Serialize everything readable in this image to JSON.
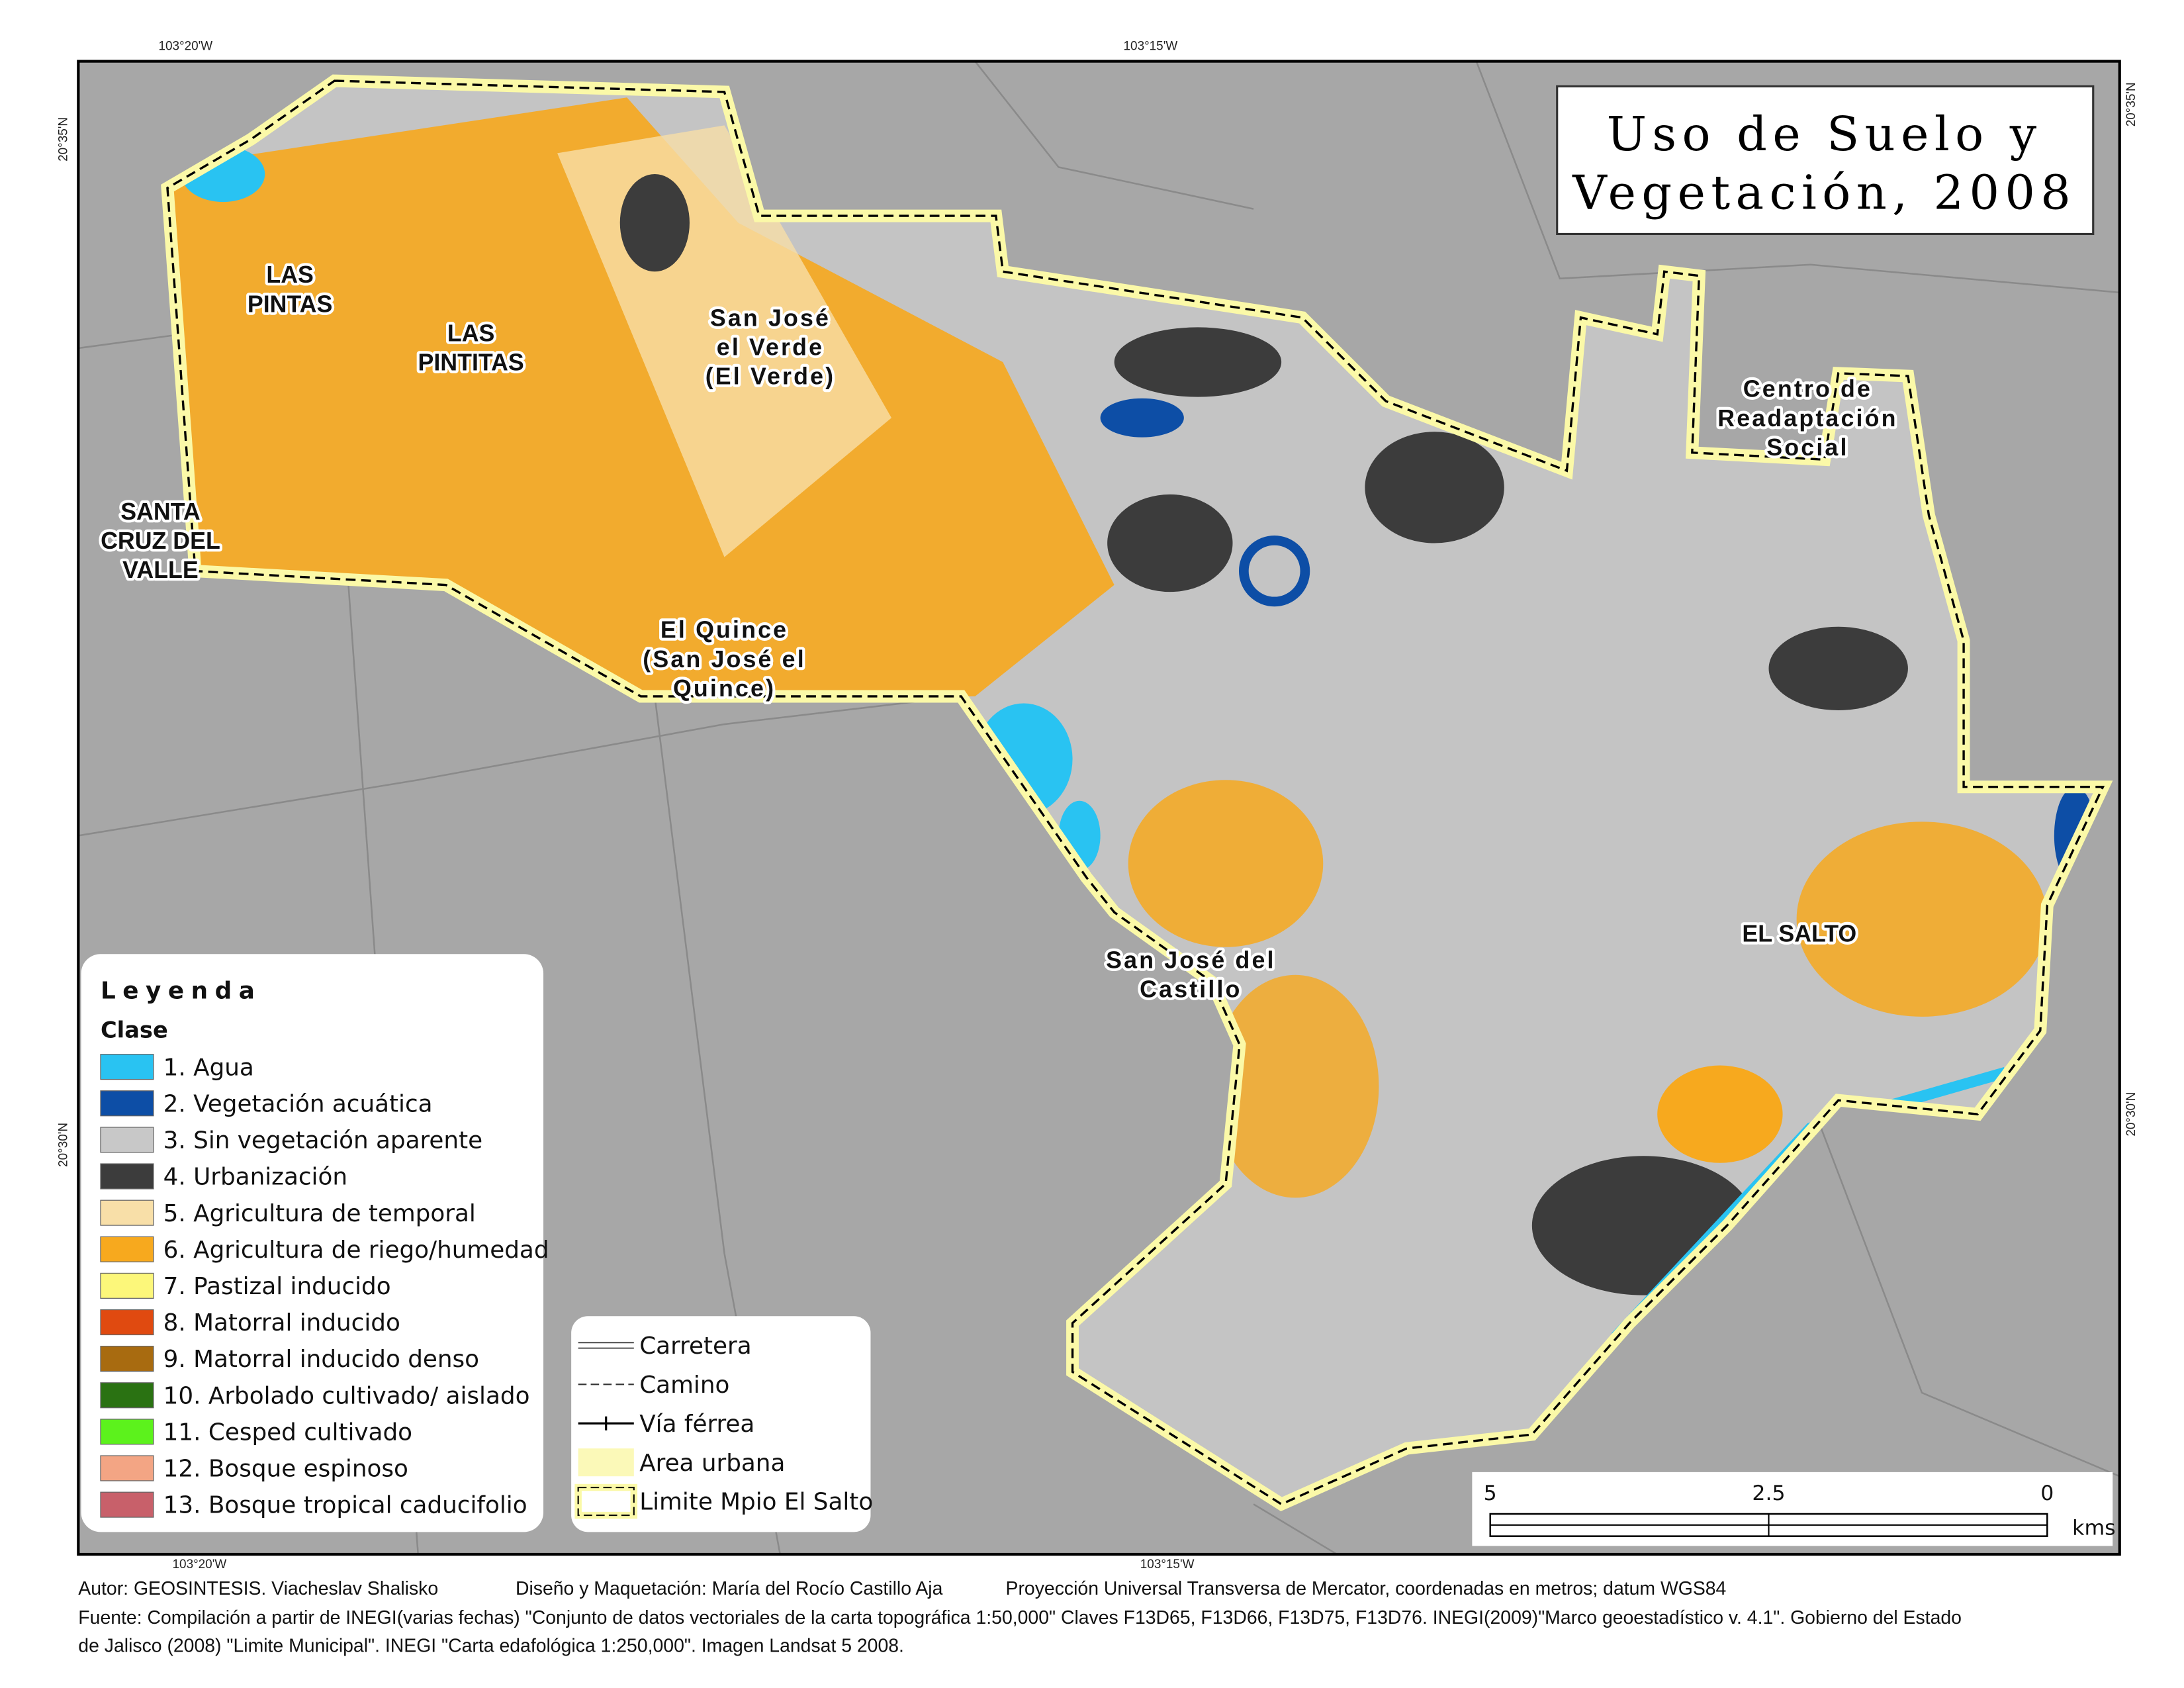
{
  "title": {
    "lines": [
      "Uso de Suelo y",
      "Vegetación, 2008"
    ]
  },
  "coordinates": {
    "top": [
      "103°20'W",
      "103°15'W"
    ],
    "bottom": [
      "103°20'W",
      "103°15'W"
    ],
    "left": [
      "20°35'N",
      "20°30'N"
    ],
    "right": [
      "20°35'N",
      "20°30'N"
    ]
  },
  "places": [
    {
      "lines": [
        "LAS",
        "PINTAS"
      ]
    },
    {
      "lines": [
        "LAS",
        "PINTITAS"
      ]
    },
    {
      "lines": [
        "San José",
        "el Verde",
        "(El Verde)"
      ]
    },
    {
      "lines": [
        "Centro de",
        "Readaptación",
        "Social"
      ]
    },
    {
      "lines": [
        "SANTA",
        "CRUZ DEL",
        "VALLE"
      ]
    },
    {
      "lines": [
        "El Quince",
        "(San José el",
        "Quince)"
      ]
    },
    {
      "lines": [
        "San José del",
        "Castillo"
      ]
    },
    {
      "lines": [
        "EL SALTO"
      ]
    }
  ],
  "legend": {
    "title": "Leyenda",
    "subtitle": "Clase",
    "classes": [
      {
        "label": "1.  Agua",
        "color": "#29c3f2"
      },
      {
        "label": "2.  Vegetación acuática",
        "color": "#0d4ea6"
      },
      {
        "label": "3.  Sin vegetación aparente",
        "color": "#c8c8c8"
      },
      {
        "label": "4.  Urbanización",
        "color": "#3c3c3c"
      },
      {
        "label": "5.  Agricultura de temporal",
        "color": "#f8dfa8"
      },
      {
        "label": "6.  Agricultura de riego/humedad",
        "color": "#f7a91e"
      },
      {
        "label": "7.  Pastizal inducido",
        "color": "#fcf77a"
      },
      {
        "label": "8.  Matorral inducido",
        "color": "#e04a10"
      },
      {
        "label": "9.  Matorral inducido denso",
        "color": "#a86b10"
      },
      {
        "label": "10. Arbolado cultivado/ aislado",
        "color": "#2a7212"
      },
      {
        "label": "11. Cesped cultivado",
        "color": "#5cf21c"
      },
      {
        "label": "12. Bosque espinoso",
        "color": "#f3a584"
      },
      {
        "label": "13. Bosque tropical caducifolio",
        "color": "#c8606a"
      }
    ],
    "lines": [
      "Carretera",
      "Camino",
      "Vía férrea",
      "Area urbana",
      "Limite Mpio El Salto"
    ]
  },
  "scale_bar": {
    "labels": [
      "5",
      "2.5",
      "0"
    ],
    "unit": "kms"
  },
  "footer": {
    "credits": [
      "Autor: GEOSINTESIS. Viacheslav Shalisko",
      "Diseño y Maquetación: María del Rocío Castillo Aja",
      "Proyección Universal Transversa de Mercator, coordenadas en metros; datum WGS84"
    ],
    "source": [
      "Fuente: Compilación a partir de INEGI(varias fechas) \"Conjunto de datos vectoriales de la carta topográfica 1:50,000\"  Claves F13D65, F13D66, F13D75, F13D76.  INEGI(2009)\"Marco geoestadístico v. 4.1\".  Gobierno del Estado",
      "de Jalisco (2008) \"Limite Municipal\". INEGI \"Carta edafológica 1:250,000\".  Imagen Landsat 5 2008."
    ]
  }
}
